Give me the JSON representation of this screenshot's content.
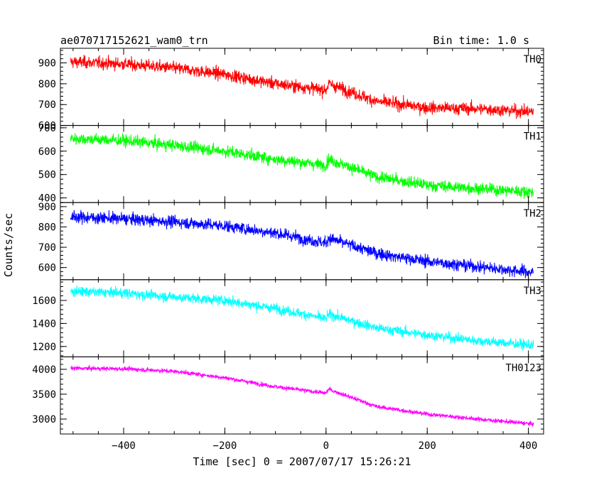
{
  "chart_data": {
    "type": "line",
    "title": "ae070717152621_wam0_trn",
    "subtitle": "Bin time: 1.0 s",
    "xlabel": "Time [sec] 0 = 2007/07/17 15:26:21",
    "ylabel": "Counts/sec",
    "xlim": [
      -525,
      430
    ],
    "x_ticks": [
      -400,
      -200,
      0,
      200,
      400
    ],
    "x_tick_labels": [
      "−400",
      "−200",
      "0",
      "200",
      "400"
    ],
    "x_range_data": [
      -505,
      410
    ],
    "grid": false,
    "panels": [
      {
        "name": "TH0",
        "color": "#ff0000",
        "ylim": [
          600,
          970
        ],
        "y_ticks": [
          600,
          700,
          800,
          900
        ],
        "trend": [
          [
            -505,
            905
          ],
          [
            -400,
            895
          ],
          [
            -300,
            875
          ],
          [
            -200,
            845
          ],
          [
            -100,
            800
          ],
          [
            0,
            770
          ],
          [
            5,
            800
          ],
          [
            100,
            715
          ],
          [
            200,
            685
          ],
          [
            300,
            680
          ],
          [
            410,
            665
          ]
        ],
        "noise": 38
      },
      {
        "name": "TH1",
        "color": "#00ff00",
        "ylim": [
          380,
          710
        ],
        "y_ticks": [
          400,
          500,
          600,
          700
        ],
        "trend": [
          [
            -505,
            655
          ],
          [
            -400,
            645
          ],
          [
            -300,
            625
          ],
          [
            -200,
            600
          ],
          [
            -100,
            565
          ],
          [
            0,
            540
          ],
          [
            5,
            565
          ],
          [
            100,
            490
          ],
          [
            200,
            455
          ],
          [
            300,
            440
          ],
          [
            410,
            425
          ]
        ],
        "noise": 32
      },
      {
        "name": "TH2",
        "color": "#0000ff",
        "ylim": [
          540,
          920
        ],
        "y_ticks": [
          600,
          700,
          800,
          900
        ],
        "trend": [
          [
            -505,
            850
          ],
          [
            -400,
            840
          ],
          [
            -300,
            825
          ],
          [
            -200,
            805
          ],
          [
            -100,
            770
          ],
          [
            0,
            720
          ],
          [
            5,
            745
          ],
          [
            100,
            670
          ],
          [
            200,
            630
          ],
          [
            300,
            605
          ],
          [
            410,
            575
          ]
        ],
        "noise": 38
      },
      {
        "name": "TH3",
        "color": "#00ffff",
        "ylim": [
          1110,
          1780
        ],
        "y_ticks": [
          1200,
          1400,
          1600
        ],
        "trend": [
          [
            -505,
            1680
          ],
          [
            -400,
            1665
          ],
          [
            -300,
            1630
          ],
          [
            -200,
            1600
          ],
          [
            -100,
            1530
          ],
          [
            0,
            1440
          ],
          [
            5,
            1480
          ],
          [
            100,
            1360
          ],
          [
            200,
            1300
          ],
          [
            300,
            1250
          ],
          [
            410,
            1210
          ]
        ],
        "noise": 55
      },
      {
        "name": "TH0123",
        "color": "#ff00ff",
        "ylim": [
          2700,
          4250
        ],
        "y_ticks": [
          3000,
          3500,
          4000
        ],
        "trend": [
          [
            -505,
            4020
          ],
          [
            -400,
            4010
          ],
          [
            -300,
            3960
          ],
          [
            -200,
            3830
          ],
          [
            -100,
            3650
          ],
          [
            0,
            3520
          ],
          [
            5,
            3600
          ],
          [
            100,
            3250
          ],
          [
            200,
            3100
          ],
          [
            300,
            3000
          ],
          [
            410,
            2900
          ]
        ],
        "noise": 55
      }
    ]
  }
}
